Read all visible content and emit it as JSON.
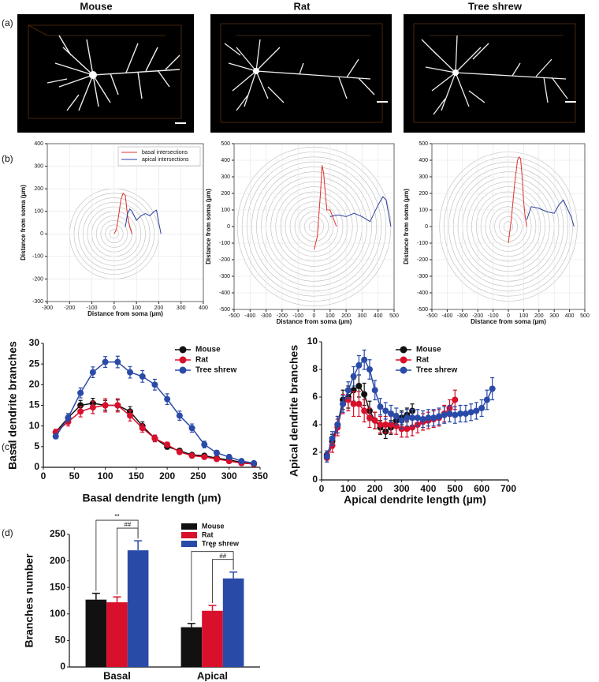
{
  "column_titles": [
    "Mouse",
    "Rat",
    "Tree shrew"
  ],
  "panel_labels": [
    "(a)",
    "(b)",
    "(c)",
    "(d)"
  ],
  "chart_data": [
    {
      "type": "line",
      "xlabel": "Distance from soma (µm)",
      "ylabel": "Distance from soma (µm)",
      "xlim": [
        -300,
        400
      ],
      "xticks": [
        -300,
        -200,
        -100,
        0,
        100,
        200,
        300,
        400
      ],
      "ylim": [
        -300,
        400
      ],
      "yticks": [
        -300,
        -200,
        -100,
        0,
        100,
        200,
        300,
        400
      ],
      "grid": true,
      "rings": {
        "radius": 200,
        "count": 10
      },
      "legend": "upper right",
      "series": [
        {
          "name": "basal intersections",
          "color": "#e0302a",
          "x": [
            0,
            10,
            20,
            30,
            40,
            50,
            60,
            70,
            80
          ],
          "values": [
            0,
            20,
            80,
            150,
            180,
            170,
            80,
            30,
            0
          ]
        },
        {
          "name": "apical intersections",
          "color": "#2a3f9e",
          "x": [
            50,
            60,
            70,
            80,
            100,
            120,
            140,
            160,
            180,
            190,
            200,
            210
          ],
          "values": [
            30,
            90,
            110,
            100,
            60,
            80,
            90,
            80,
            100,
            105,
            50,
            0
          ]
        }
      ]
    },
    {
      "type": "line",
      "xlabel": "Distance from soma (µm)",
      "ylabel": "Distance from soma (µm)",
      "xlim": [
        -500,
        500
      ],
      "xticks": [
        -500,
        -400,
        -300,
        -200,
        -100,
        0,
        100,
        200,
        300,
        400,
        500
      ],
      "ylim": [
        -500,
        500
      ],
      "yticks": [
        -500,
        -400,
        -300,
        -200,
        -100,
        0,
        100,
        200,
        300,
        400,
        500
      ],
      "grid": true,
      "rings": {
        "radius": 480,
        "count": 16
      },
      "series": [
        {
          "color": "#e0302a",
          "x": [
            0,
            20,
            40,
            50,
            60,
            70,
            80,
            100,
            120,
            140
          ],
          "values": [
            -140,
            -60,
            200,
            370,
            320,
            200,
            100,
            100,
            50,
            0
          ]
        },
        {
          "color": "#2a3f9e",
          "x": [
            100,
            150,
            200,
            250,
            300,
            350,
            400,
            430,
            450,
            480
          ],
          "values": [
            60,
            70,
            60,
            80,
            60,
            30,
            130,
            180,
            160,
            0
          ]
        }
      ]
    },
    {
      "type": "line",
      "xlabel": "Distance from soma (µm)",
      "ylabel": "Distance from soma (µm)",
      "xlim": [
        -500,
        500
      ],
      "xticks": [
        -500,
        -400,
        -300,
        -200,
        -100,
        0,
        100,
        200,
        300,
        400,
        500
      ],
      "ylim": [
        -500,
        500
      ],
      "yticks": [
        -500,
        -400,
        -300,
        -200,
        -100,
        0,
        100,
        200,
        300,
        400,
        500
      ],
      "grid": true,
      "rings": {
        "radius": 450,
        "count": 15
      },
      "series": [
        {
          "color": "#e0302a",
          "x": [
            0,
            20,
            40,
            60,
            70,
            80,
            90,
            100,
            110,
            120
          ],
          "values": [
            -100,
            50,
            250,
            400,
            420,
            410,
            300,
            150,
            60,
            0
          ]
        },
        {
          "color": "#2a3f9e",
          "x": [
            120,
            150,
            200,
            250,
            300,
            330,
            360,
            390,
            410,
            430
          ],
          "values": [
            40,
            120,
            110,
            90,
            80,
            130,
            160,
            100,
            60,
            0
          ]
        }
      ]
    },
    {
      "type": "line",
      "xlabel": "Basal dendrite length (µm)",
      "ylabel": "Basal dendrite branches",
      "xlim": [
        0,
        350
      ],
      "xticks": [
        0,
        50,
        100,
        150,
        200,
        250,
        300,
        350
      ],
      "ylim": [
        0,
        30
      ],
      "yticks": [
        0,
        5,
        10,
        15,
        20,
        25,
        30
      ],
      "markers": true,
      "legend": "upper right",
      "series": [
        {
          "name": "Mouse",
          "color": "#111111",
          "x": [
            20,
            40,
            60,
            80,
            100,
            120,
            140,
            160,
            180,
            200,
            220,
            240,
            260,
            280,
            300,
            320,
            340
          ],
          "values": [
            8.5,
            12,
            15,
            15.5,
            15,
            15,
            13.5,
            10,
            7,
            5,
            4,
            3,
            2.8,
            2.2,
            1.8,
            1.2,
            0.8
          ],
          "errors": [
            0.6,
            1,
            1.2,
            1.2,
            1.2,
            1.3,
            1.2,
            1,
            0.8,
            0.6,
            0.5,
            0.4,
            0.4,
            0.3,
            0.3,
            0.2,
            0.2
          ]
        },
        {
          "name": "Rat",
          "color": "#d8102c",
          "x": [
            20,
            40,
            60,
            80,
            100,
            120,
            140,
            160,
            180,
            200,
            220,
            240,
            260,
            280,
            300,
            320,
            340
          ],
          "values": [
            8.5,
            11,
            13.5,
            14.5,
            15,
            15,
            12.5,
            9.5,
            7,
            5.5,
            3.7,
            2.8,
            2.5,
            2,
            1.5,
            1,
            0.8
          ],
          "errors": [
            0.7,
            1,
            1.3,
            1.5,
            1.6,
            1.6,
            1.3,
            1,
            0.8,
            0.6,
            0.5,
            0.4,
            0.4,
            0.3,
            0.3,
            0.2,
            0.2
          ]
        },
        {
          "name": "Tree shrew",
          "color": "#2a4aa8",
          "x": [
            20,
            40,
            60,
            80,
            100,
            120,
            140,
            160,
            180,
            200,
            220,
            240,
            260,
            280,
            300,
            320,
            340
          ],
          "values": [
            7.5,
            12,
            18,
            23,
            25.5,
            25.5,
            23,
            22,
            20,
            16.5,
            12.5,
            9.5,
            5.5,
            3.5,
            2.5,
            1.5,
            1
          ],
          "errors": [
            0.6,
            1,
            1.2,
            1.3,
            1.3,
            1.4,
            1.4,
            1.4,
            1.3,
            1.3,
            1.1,
            1,
            0.8,
            0.6,
            0.5,
            0.4,
            0.3
          ]
        }
      ]
    },
    {
      "type": "line",
      "xlabel": "Apical dendrite length (µm)",
      "ylabel": "Apical dendrite branches",
      "xlim": [
        0,
        700
      ],
      "xticks": [
        0,
        100,
        200,
        300,
        400,
        500,
        600,
        700
      ],
      "ylim": [
        0,
        10
      ],
      "yticks": [
        0,
        2,
        4,
        6,
        8,
        10
      ],
      "markers": true,
      "legend": "upper right",
      "series": [
        {
          "name": "Mouse",
          "color": "#111111",
          "x": [
            20,
            40,
            60,
            80,
            100,
            120,
            140,
            160,
            180,
            200,
            220,
            240,
            260,
            280,
            300,
            320,
            340
          ],
          "values": [
            1.8,
            2.8,
            4,
            5.8,
            6,
            6.5,
            6.8,
            6.2,
            5,
            4.3,
            3.8,
            3.5,
            3.8,
            4.3,
            4.5,
            4.7,
            5
          ],
          "errors": [
            0.3,
            0.5,
            0.6,
            0.7,
            0.8,
            0.8,
            0.8,
            0.8,
            0.7,
            0.6,
            0.5,
            0.5,
            0.5,
            0.5,
            0.5,
            0.5,
            0.5
          ]
        },
        {
          "name": "Rat",
          "color": "#d8102c",
          "x": [
            20,
            40,
            60,
            80,
            100,
            120,
            140,
            160,
            180,
            200,
            220,
            240,
            260,
            280,
            300,
            320,
            340,
            360,
            380,
            400,
            420,
            440,
            460,
            480,
            500
          ],
          "values": [
            1.6,
            2.5,
            3.8,
            5.5,
            5.8,
            5.5,
            5.5,
            5,
            4.5,
            4.3,
            4,
            4,
            4,
            3.9,
            3.7,
            3.7,
            3.8,
            4,
            4.2,
            4.3,
            4.4,
            4.5,
            4.8,
            5.2,
            5.8
          ],
          "errors": [
            0.3,
            0.5,
            0.6,
            0.7,
            0.8,
            0.9,
            0.9,
            0.8,
            0.7,
            0.6,
            0.6,
            0.6,
            0.6,
            0.6,
            0.6,
            0.6,
            0.6,
            0.6,
            0.6,
            0.6,
            0.6,
            0.6,
            0.6,
            0.6,
            0.7
          ]
        },
        {
          "name": "Tree shrew",
          "color": "#2a4aa8",
          "x": [
            20,
            40,
            60,
            80,
            100,
            120,
            140,
            160,
            180,
            200,
            220,
            240,
            260,
            280,
            300,
            320,
            340,
            360,
            380,
            400,
            420,
            440,
            460,
            480,
            500,
            520,
            540,
            560,
            580,
            600,
            620,
            640
          ],
          "values": [
            1.7,
            3,
            4,
            5.5,
            6.5,
            7.5,
            8.3,
            8.7,
            8,
            6.5,
            5.3,
            5,
            4.8,
            4.6,
            4.3,
            4.5,
            4.5,
            4.5,
            4.4,
            4.5,
            4.5,
            4.6,
            4.7,
            4.8,
            4.7,
            4.8,
            4.8,
            4.9,
            5,
            5.2,
            5.8,
            6.6
          ],
          "errors": [
            0.4,
            0.5,
            0.6,
            0.6,
            0.6,
            0.7,
            0.7,
            0.7,
            0.7,
            0.7,
            0.6,
            0.6,
            0.6,
            0.6,
            0.6,
            0.6,
            0.6,
            0.6,
            0.6,
            0.6,
            0.6,
            0.6,
            0.6,
            0.6,
            0.6,
            0.6,
            0.6,
            0.6,
            0.6,
            0.6,
            0.7,
            0.8
          ]
        }
      ]
    },
    {
      "type": "bar",
      "ylabel": "Branches number",
      "categories": [
        "Basal",
        "Apical"
      ],
      "ylim": [
        0,
        250
      ],
      "yticks": [
        0,
        50,
        100,
        150,
        200,
        250
      ],
      "legend": "upper right",
      "series": [
        {
          "name": "Mouse",
          "color": "#111111",
          "values": [
            127,
            75
          ],
          "errors": [
            12,
            7
          ]
        },
        {
          "name": "Rat",
          "color": "#d8102c",
          "values": [
            122,
            106
          ],
          "errors": [
            10,
            10
          ]
        },
        {
          "name": "Tree shrew",
          "color": "#2a4aa8",
          "values": [
            220,
            167
          ],
          "errors": [
            18,
            12
          ]
        }
      ],
      "annotations": [
        {
          "text": "**",
          "category": 0,
          "series": [
            0,
            2
          ]
        },
        {
          "text": "##",
          "category": 0,
          "series": [
            1,
            2
          ]
        },
        {
          "text": "**",
          "category": 1,
          "series": [
            0,
            2
          ]
        },
        {
          "text": "##",
          "category": 1,
          "series": [
            1,
            2
          ]
        }
      ]
    }
  ]
}
